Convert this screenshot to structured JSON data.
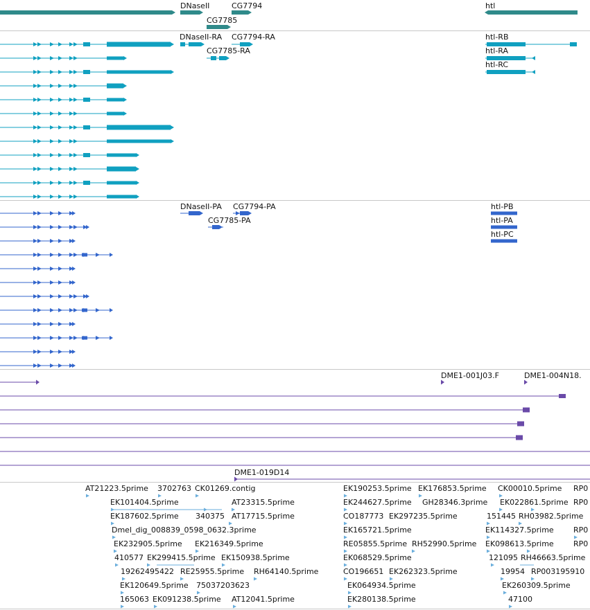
{
  "colors": {
    "gene": "#2f8a8a",
    "mrna": "#10a0c0",
    "protein": "#3366cc",
    "clone": "#6a4aa8",
    "est": "#6aaedc",
    "separator": "#c8c8c8"
  },
  "tracks": {
    "genes": {
      "labels": [
        "DNaseII",
        "CG7794",
        "CG7785",
        "htl"
      ]
    },
    "transcripts": {
      "labels": [
        "DNaseII-RA",
        "CG7794-RA",
        "CG7785-RA",
        "htl-RB",
        "htl-RA",
        "htl-RC"
      ]
    },
    "proteins": {
      "labels": [
        "DNaseII-PA",
        "CG7794-PA",
        "CG7785-PA",
        "htl-PB",
        "htl-PA",
        "htl-PC"
      ]
    },
    "clones": {
      "labels": [
        "DME1-001J03.F",
        "DME1-004N18.",
        "DME1-019D14"
      ]
    },
    "ests": {
      "labels": [
        "AT21223.5prime",
        "3702763",
        "CK01269.contig",
        "EK190253.5prime",
        "EK176853.5prime",
        "CK00010.5prime",
        "RP0",
        "EK101404.5prime",
        "AT23315.5prime",
        "EK244627.5prime",
        "GH28346.3prime",
        "EK022861.5prime",
        "RP0",
        "EK187602.5prime",
        "340375",
        "AT17715.5prime",
        "CO187773",
        "EK297235.5prime",
        "151445",
        "RH03982.5prime",
        "Dmel_dig_008839_0598_0632.3prime",
        "EK165721.5prime",
        "EK114327.5prime",
        "RP0",
        "EK232905.5prime",
        "EK216349.5prime",
        "RE05855.5prime",
        "RH52990.5prime",
        "EK098613.5prime",
        "RP0",
        "410577",
        "EK299415.5prime",
        "EK150938.5prime",
        "EK068529.5prime",
        "121095",
        "RH46663.5prime",
        "19262495422",
        "RE25955.5prime",
        "RH64140.5prime",
        "CO196651",
        "EK262323.5prime",
        "19954",
        "RP003195910",
        "EK120649.5prime",
        "75037203623",
        "EK064934.5prime",
        "EK260309.5prime",
        "165063",
        "EK091238.5prime",
        "AT12041.5prime",
        "EK280138.5prime",
        "47100"
      ]
    }
  }
}
